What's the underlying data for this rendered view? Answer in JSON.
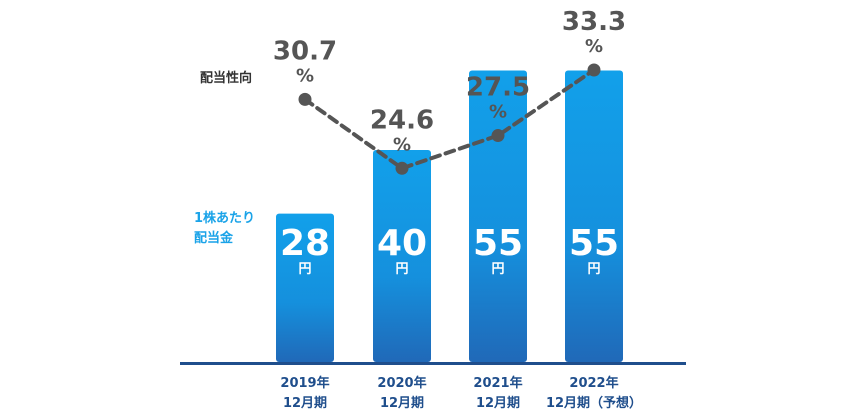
{
  "chart_data": {
    "type": "bar",
    "categories": [
      [
        "2019年",
        "12月期"
      ],
      [
        "2020年",
        "12月期"
      ],
      [
        "2021年",
        "12月期"
      ],
      [
        "2022年",
        "12月期（予想）"
      ]
    ],
    "series": [
      {
        "name": "1株あたり配当金",
        "name_lines": [
          "1株あたり",
          "配当金"
        ],
        "type": "bar",
        "values": [
          28,
          40,
          55,
          55
        ],
        "labels": [
          "28",
          "40",
          "55",
          "55"
        ],
        "unit": "円",
        "color": "#1aa3e8"
      },
      {
        "name": "配当性向",
        "type": "line",
        "values": [
          30.7,
          24.6,
          27.5,
          33.3
        ],
        "labels": [
          "30.7",
          "24.6",
          "27.5",
          "33.3"
        ],
        "unit": "%",
        "color": "#555555"
      }
    ],
    "ylim": [
      0,
      60
    ],
    "y2lim": [
      0,
      37
    ],
    "grid": false,
    "legend": "left"
  }
}
